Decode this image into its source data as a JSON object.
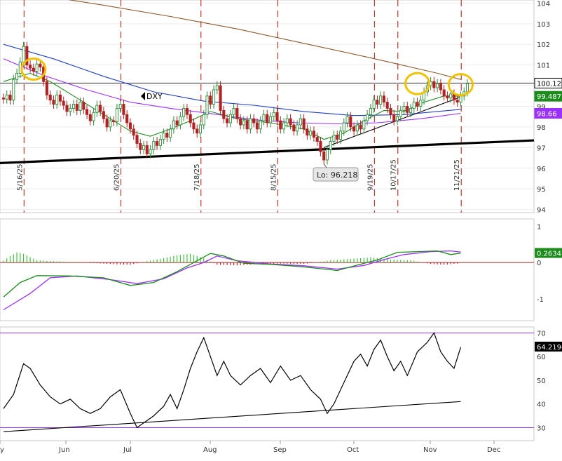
{
  "chart_data": [
    {
      "type": "candlestick",
      "symbol": "DXY",
      "annotation_low": "Lo: 96.218",
      "y_ticks": [
        104,
        103,
        102,
        101,
        100,
        99,
        98,
        97,
        96,
        95,
        94
      ],
      "ylim": [
        93.85,
        104.15
      ],
      "event_dates": [
        "5/16/25",
        "6/20/25",
        "7/18/25",
        "8/15/25",
        "9/19/25",
        "10/17/25",
        "11/21/25"
      ],
      "price_labels": [
        {
          "text": "100.123",
          "value": 100.123,
          "color": "#000000",
          "style": "outline"
        },
        {
          "text": "99.487",
          "value": 99.487,
          "color": "#1b8c1b",
          "style": "filled"
        },
        {
          "text": "98.66",
          "value": 98.66,
          "color": "#9b30ff",
          "style": "filled"
        }
      ],
      "resistance_level": 100.123,
      "support_line": {
        "start": 96.25,
        "end": 97.35
      },
      "candles": [
        [
          99.4,
          99.35
        ],
        [
          99.35,
          99.55
        ],
        [
          99.55,
          99.3
        ],
        [
          99.3,
          100.3
        ],
        [
          100.3,
          100.6
        ],
        [
          100.6,
          101.15
        ],
        [
          101.15,
          101.9
        ],
        [
          101.9,
          101.0
        ],
        [
          101.0,
          100.85
        ],
        [
          100.85,
          100.7
        ],
        [
          100.7,
          101.05
        ],
        [
          101.05,
          100.9
        ],
        [
          100.9,
          100.2
        ],
        [
          100.2,
          99.55
        ],
        [
          99.55,
          99.3
        ],
        [
          99.3,
          99.1
        ],
        [
          99.1,
          99.55
        ],
        [
          99.55,
          99.25
        ],
        [
          99.25,
          99.05
        ],
        [
          99.05,
          98.75
        ],
        [
          98.75,
          98.9
        ],
        [
          98.9,
          99.1
        ],
        [
          99.1,
          98.8
        ],
        [
          98.8,
          99.2
        ],
        [
          99.2,
          98.85
        ],
        [
          98.85,
          98.6
        ],
        [
          98.6,
          98.3
        ],
        [
          98.3,
          98.7
        ],
        [
          98.7,
          99.05
        ],
        [
          99.05,
          98.75
        ],
        [
          98.75,
          98.4
        ],
        [
          98.4,
          98.0
        ],
        [
          98.0,
          98.3
        ],
        [
          98.3,
          98.25
        ],
        [
          98.25,
          98.9
        ],
        [
          98.9,
          99.1
        ],
        [
          99.1,
          98.6
        ],
        [
          98.6,
          98.2
        ],
        [
          98.2,
          97.9
        ],
        [
          97.9,
          97.6
        ],
        [
          97.6,
          97.2
        ],
        [
          97.2,
          96.9
        ],
        [
          96.9,
          97.1
        ],
        [
          97.1,
          96.7
        ],
        [
          96.7,
          96.9
        ],
        [
          96.9,
          97.3
        ],
        [
          97.3,
          97.1
        ],
        [
          97.1,
          97.4
        ],
        [
          97.4,
          97.7
        ],
        [
          97.7,
          97.5
        ],
        [
          97.5,
          97.9
        ],
        [
          97.9,
          98.3
        ],
        [
          98.3,
          98.1
        ],
        [
          98.1,
          98.5
        ],
        [
          98.5,
          98.9
        ],
        [
          98.9,
          98.6
        ],
        [
          98.6,
          98.2
        ],
        [
          98.2,
          97.9
        ],
        [
          97.9,
          97.7
        ],
        [
          97.7,
          98.1
        ],
        [
          98.1,
          98.6
        ],
        [
          98.6,
          99.5
        ],
        [
          99.5,
          99.1
        ],
        [
          99.1,
          99.8
        ],
        [
          99.8,
          100.0
        ],
        [
          100.0,
          98.8
        ],
        [
          98.8,
          98.4
        ],
        [
          98.4,
          98.2
        ],
        [
          98.2,
          98.6
        ],
        [
          98.6,
          98.9
        ],
        [
          98.9,
          98.4
        ],
        [
          98.4,
          98.1
        ],
        [
          98.1,
          98.3
        ],
        [
          98.3,
          97.9
        ],
        [
          97.9,
          98.4
        ],
        [
          98.4,
          98.2
        ],
        [
          98.2,
          97.9
        ],
        [
          97.9,
          98.3
        ],
        [
          98.3,
          98.6
        ],
        [
          98.6,
          98.2
        ],
        [
          98.2,
          98.5
        ],
        [
          98.5,
          98.7
        ],
        [
          98.7,
          98.3
        ],
        [
          98.3,
          97.9
        ],
        [
          97.9,
          98.2
        ],
        [
          98.2,
          98.4
        ],
        [
          98.4,
          98.1
        ],
        [
          98.1,
          97.8
        ],
        [
          97.8,
          98.1
        ],
        [
          98.1,
          98.4
        ],
        [
          98.4,
          97.9
        ],
        [
          97.9,
          97.6
        ],
        [
          97.6,
          97.8
        ],
        [
          97.8,
          97.5
        ],
        [
          97.5,
          97.3
        ],
        [
          97.3,
          96.8
        ],
        [
          96.8,
          96.4
        ],
        [
          96.4,
          96.9
        ],
        [
          96.9,
          97.3
        ],
        [
          97.3,
          97.6
        ],
        [
          97.6,
          97.4
        ],
        [
          97.4,
          97.8
        ],
        [
          97.8,
          98.2
        ],
        [
          98.2,
          98.5
        ],
        [
          98.5,
          98.0
        ],
        [
          98.0,
          97.8
        ],
        [
          97.8,
          98.1
        ],
        [
          98.1,
          97.9
        ],
        [
          97.9,
          98.3
        ],
        [
          98.3,
          98.6
        ],
        [
          98.6,
          98.9
        ],
        [
          98.9,
          99.3
        ],
        [
          99.3,
          99.1
        ],
        [
          99.1,
          99.5
        ],
        [
          99.5,
          99.2
        ],
        [
          99.2,
          98.9
        ],
        [
          98.9,
          98.6
        ],
        [
          98.6,
          98.3
        ],
        [
          98.3,
          98.5
        ],
        [
          98.5,
          98.8
        ],
        [
          98.8,
          99.0
        ],
        [
          99.0,
          98.7
        ],
        [
          98.7,
          98.9
        ],
        [
          98.9,
          99.2
        ],
        [
          99.2,
          99.0
        ],
        [
          99.0,
          99.3
        ],
        [
          99.3,
          99.7
        ],
        [
          99.7,
          100.0
        ],
        [
          100.0,
          100.2
        ],
        [
          100.2,
          99.9
        ],
        [
          99.9,
          100.1
        ],
        [
          100.1,
          99.8
        ],
        [
          99.8,
          99.5
        ],
        [
          99.5,
          99.4
        ],
        [
          99.4,
          99.6
        ],
        [
          99.6,
          99.3
        ],
        [
          99.3,
          99.2
        ],
        [
          99.2,
          99.5
        ],
        [
          99.5,
          99.7
        ],
        [
          99.7,
          100.1
        ]
      ],
      "ma_long": [
        [
          0,
          104.6
        ],
        [
          10,
          104.4
        ],
        [
          30,
          103.9
        ],
        [
          50,
          103.35
        ],
        [
          70,
          102.75
        ],
        [
          90,
          102.05
        ],
        [
          110,
          101.35
        ],
        [
          130,
          100.6
        ],
        [
          137,
          100.3
        ]
      ],
      "ma_mid": [
        [
          0,
          102.0
        ],
        [
          15,
          101.3
        ],
        [
          30,
          100.45
        ],
        [
          45,
          99.7
        ],
        [
          60,
          99.25
        ],
        [
          75,
          99.05
        ],
        [
          90,
          98.75
        ],
        [
          105,
          98.55
        ],
        [
          120,
          98.6
        ],
        [
          137,
          98.85
        ]
      ],
      "ma_slow": [
        [
          0,
          101.3
        ],
        [
          12,
          100.5
        ],
        [
          25,
          99.8
        ],
        [
          38,
          99.2
        ],
        [
          50,
          98.9
        ],
        [
          62,
          98.65
        ],
        [
          75,
          98.35
        ],
        [
          88,
          98.2
        ],
        [
          100,
          98.15
        ],
        [
          112,
          98.2
        ],
        [
          125,
          98.4
        ],
        [
          137,
          98.66
        ]
      ],
      "ma_fast": [
        [
          0,
          100.2
        ],
        [
          8,
          100.6
        ],
        [
          14,
          100.2
        ],
        [
          22,
          99.4
        ],
        [
          30,
          98.6
        ],
        [
          38,
          97.8
        ],
        [
          44,
          97.55
        ],
        [
          50,
          97.9
        ],
        [
          56,
          98.3
        ],
        [
          62,
          98.75
        ],
        [
          70,
          98.4
        ],
        [
          80,
          98.2
        ],
        [
          90,
          97.9
        ],
        [
          96,
          97.4
        ],
        [
          102,
          97.7
        ],
        [
          108,
          98.3
        ],
        [
          114,
          98.8
        ],
        [
          120,
          98.75
        ],
        [
          126,
          99.2
        ],
        [
          132,
          99.5
        ],
        [
          137,
          99.49
        ]
      ],
      "trend_line": [
        [
          96,
          97.0
        ],
        [
          137,
          99.45
        ]
      ],
      "highlight_circles": [
        [
          9,
          100.8
        ],
        [
          124,
          100.1
        ],
        [
          137,
          100.05
        ]
      ],
      "date_markers_index": [
        7,
        36,
        60,
        83,
        112,
        119,
        138
      ]
    },
    {
      "type": "macd",
      "y_ticks": [
        1,
        0,
        -1
      ],
      "ylim": [
        -1.6,
        1.2
      ],
      "current_value": "0.2634",
      "macd_line": [
        [
          0,
          -0.95
        ],
        [
          5,
          -0.55
        ],
        [
          10,
          -0.36
        ],
        [
          20,
          -0.37
        ],
        [
          30,
          -0.42
        ],
        [
          38,
          -0.63
        ],
        [
          45,
          -0.55
        ],
        [
          52,
          -0.25
        ],
        [
          58,
          0.05
        ],
        [
          62,
          0.25
        ],
        [
          66,
          0.18
        ],
        [
          72,
          -0.02
        ],
        [
          80,
          -0.05
        ],
        [
          90,
          -0.12
        ],
        [
          100,
          -0.22
        ],
        [
          106,
          -0.07
        ],
        [
          112,
          0.07
        ],
        [
          118,
          0.28
        ],
        [
          124,
          0.3
        ],
        [
          130,
          0.32
        ],
        [
          134,
          0.22
        ],
        [
          137,
          0.26
        ]
      ],
      "signal_line": [
        [
          0,
          -1.3
        ],
        [
          8,
          -0.85
        ],
        [
          14,
          -0.42
        ],
        [
          22,
          -0.37
        ],
        [
          32,
          -0.47
        ],
        [
          40,
          -0.58
        ],
        [
          48,
          -0.45
        ],
        [
          55,
          -0.15
        ],
        [
          60,
          0.0
        ],
        [
          64,
          0.18
        ],
        [
          70,
          0.05
        ],
        [
          80,
          -0.04
        ],
        [
          90,
          -0.09
        ],
        [
          100,
          -0.18
        ],
        [
          108,
          -0.08
        ],
        [
          114,
          0.08
        ],
        [
          120,
          0.22
        ],
        [
          128,
          0.3
        ],
        [
          134,
          0.32
        ],
        [
          137,
          0.29
        ]
      ],
      "histogram": [
        [
          0,
          0.05
        ],
        [
          2,
          0.18
        ],
        [
          4,
          0.28
        ],
        [
          6,
          0.24
        ],
        [
          8,
          0.15
        ],
        [
          10,
          0.06
        ],
        [
          28,
          -0.02
        ],
        [
          34,
          -0.05
        ],
        [
          38,
          -0.06
        ],
        [
          44,
          0.05
        ],
        [
          48,
          0.12
        ],
        [
          52,
          0.2
        ],
        [
          56,
          0.24
        ],
        [
          60,
          0.12
        ],
        [
          64,
          -0.06
        ],
        [
          70,
          -0.08
        ],
        [
          76,
          -0.04
        ],
        [
          84,
          -0.03
        ],
        [
          90,
          -0.04
        ],
        [
          98,
          0.06
        ],
        [
          104,
          0.1
        ],
        [
          110,
          0.14
        ],
        [
          116,
          0.08
        ],
        [
          122,
          0.06
        ],
        [
          128,
          -0.04
        ],
        [
          132,
          -0.06
        ],
        [
          136,
          -0.03
        ]
      ]
    },
    {
      "type": "line",
      "indicator": "RSI",
      "y_ticks": [
        70,
        60,
        50,
        40,
        30
      ],
      "ylim": [
        24.5,
        72.5
      ],
      "current_value": "64.2194",
      "overbought": 70,
      "oversold": 30,
      "x_ticks": [
        "y",
        "Jun",
        "Jul",
        "Aug",
        "Sep",
        "Oct",
        "Nov",
        "Dec"
      ],
      "rsi": [
        [
          0,
          38
        ],
        [
          3,
          44
        ],
        [
          6,
          57
        ],
        [
          8,
          55
        ],
        [
          11,
          48
        ],
        [
          14,
          43
        ],
        [
          17,
          40
        ],
        [
          20,
          42
        ],
        [
          23,
          38
        ],
        [
          26,
          36
        ],
        [
          29,
          38
        ],
        [
          32,
          43
        ],
        [
          35,
          46
        ],
        [
          38,
          36
        ],
        [
          40,
          30
        ],
        [
          42,
          32
        ],
        [
          45,
          35
        ],
        [
          48,
          39
        ],
        [
          50,
          44
        ],
        [
          52,
          38
        ],
        [
          54,
          46
        ],
        [
          56,
          55
        ],
        [
          58,
          62
        ],
        [
          60,
          68
        ],
        [
          62,
          60
        ],
        [
          64,
          52
        ],
        [
          66,
          58
        ],
        [
          68,
          52
        ],
        [
          71,
          48
        ],
        [
          74,
          52
        ],
        [
          77,
          55
        ],
        [
          80,
          49
        ],
        [
          83,
          56
        ],
        [
          86,
          50
        ],
        [
          89,
          52
        ],
        [
          92,
          46
        ],
        [
          95,
          42
        ],
        [
          97,
          36
        ],
        [
          99,
          40
        ],
        [
          101,
          46
        ],
        [
          103,
          52
        ],
        [
          105,
          58
        ],
        [
          107,
          61
        ],
        [
          109,
          56
        ],
        [
          111,
          63
        ],
        [
          113,
          67
        ],
        [
          115,
          60
        ],
        [
          117,
          54
        ],
        [
          119,
          58
        ],
        [
          121,
          52
        ],
        [
          124,
          62
        ],
        [
          127,
          66
        ],
        [
          129,
          70
        ],
        [
          131,
          62
        ],
        [
          133,
          58
        ],
        [
          135,
          55
        ],
        [
          137,
          64
        ]
      ],
      "trend_line": [
        [
          0,
          28.3
        ],
        [
          137,
          41.0
        ]
      ]
    }
  ]
}
